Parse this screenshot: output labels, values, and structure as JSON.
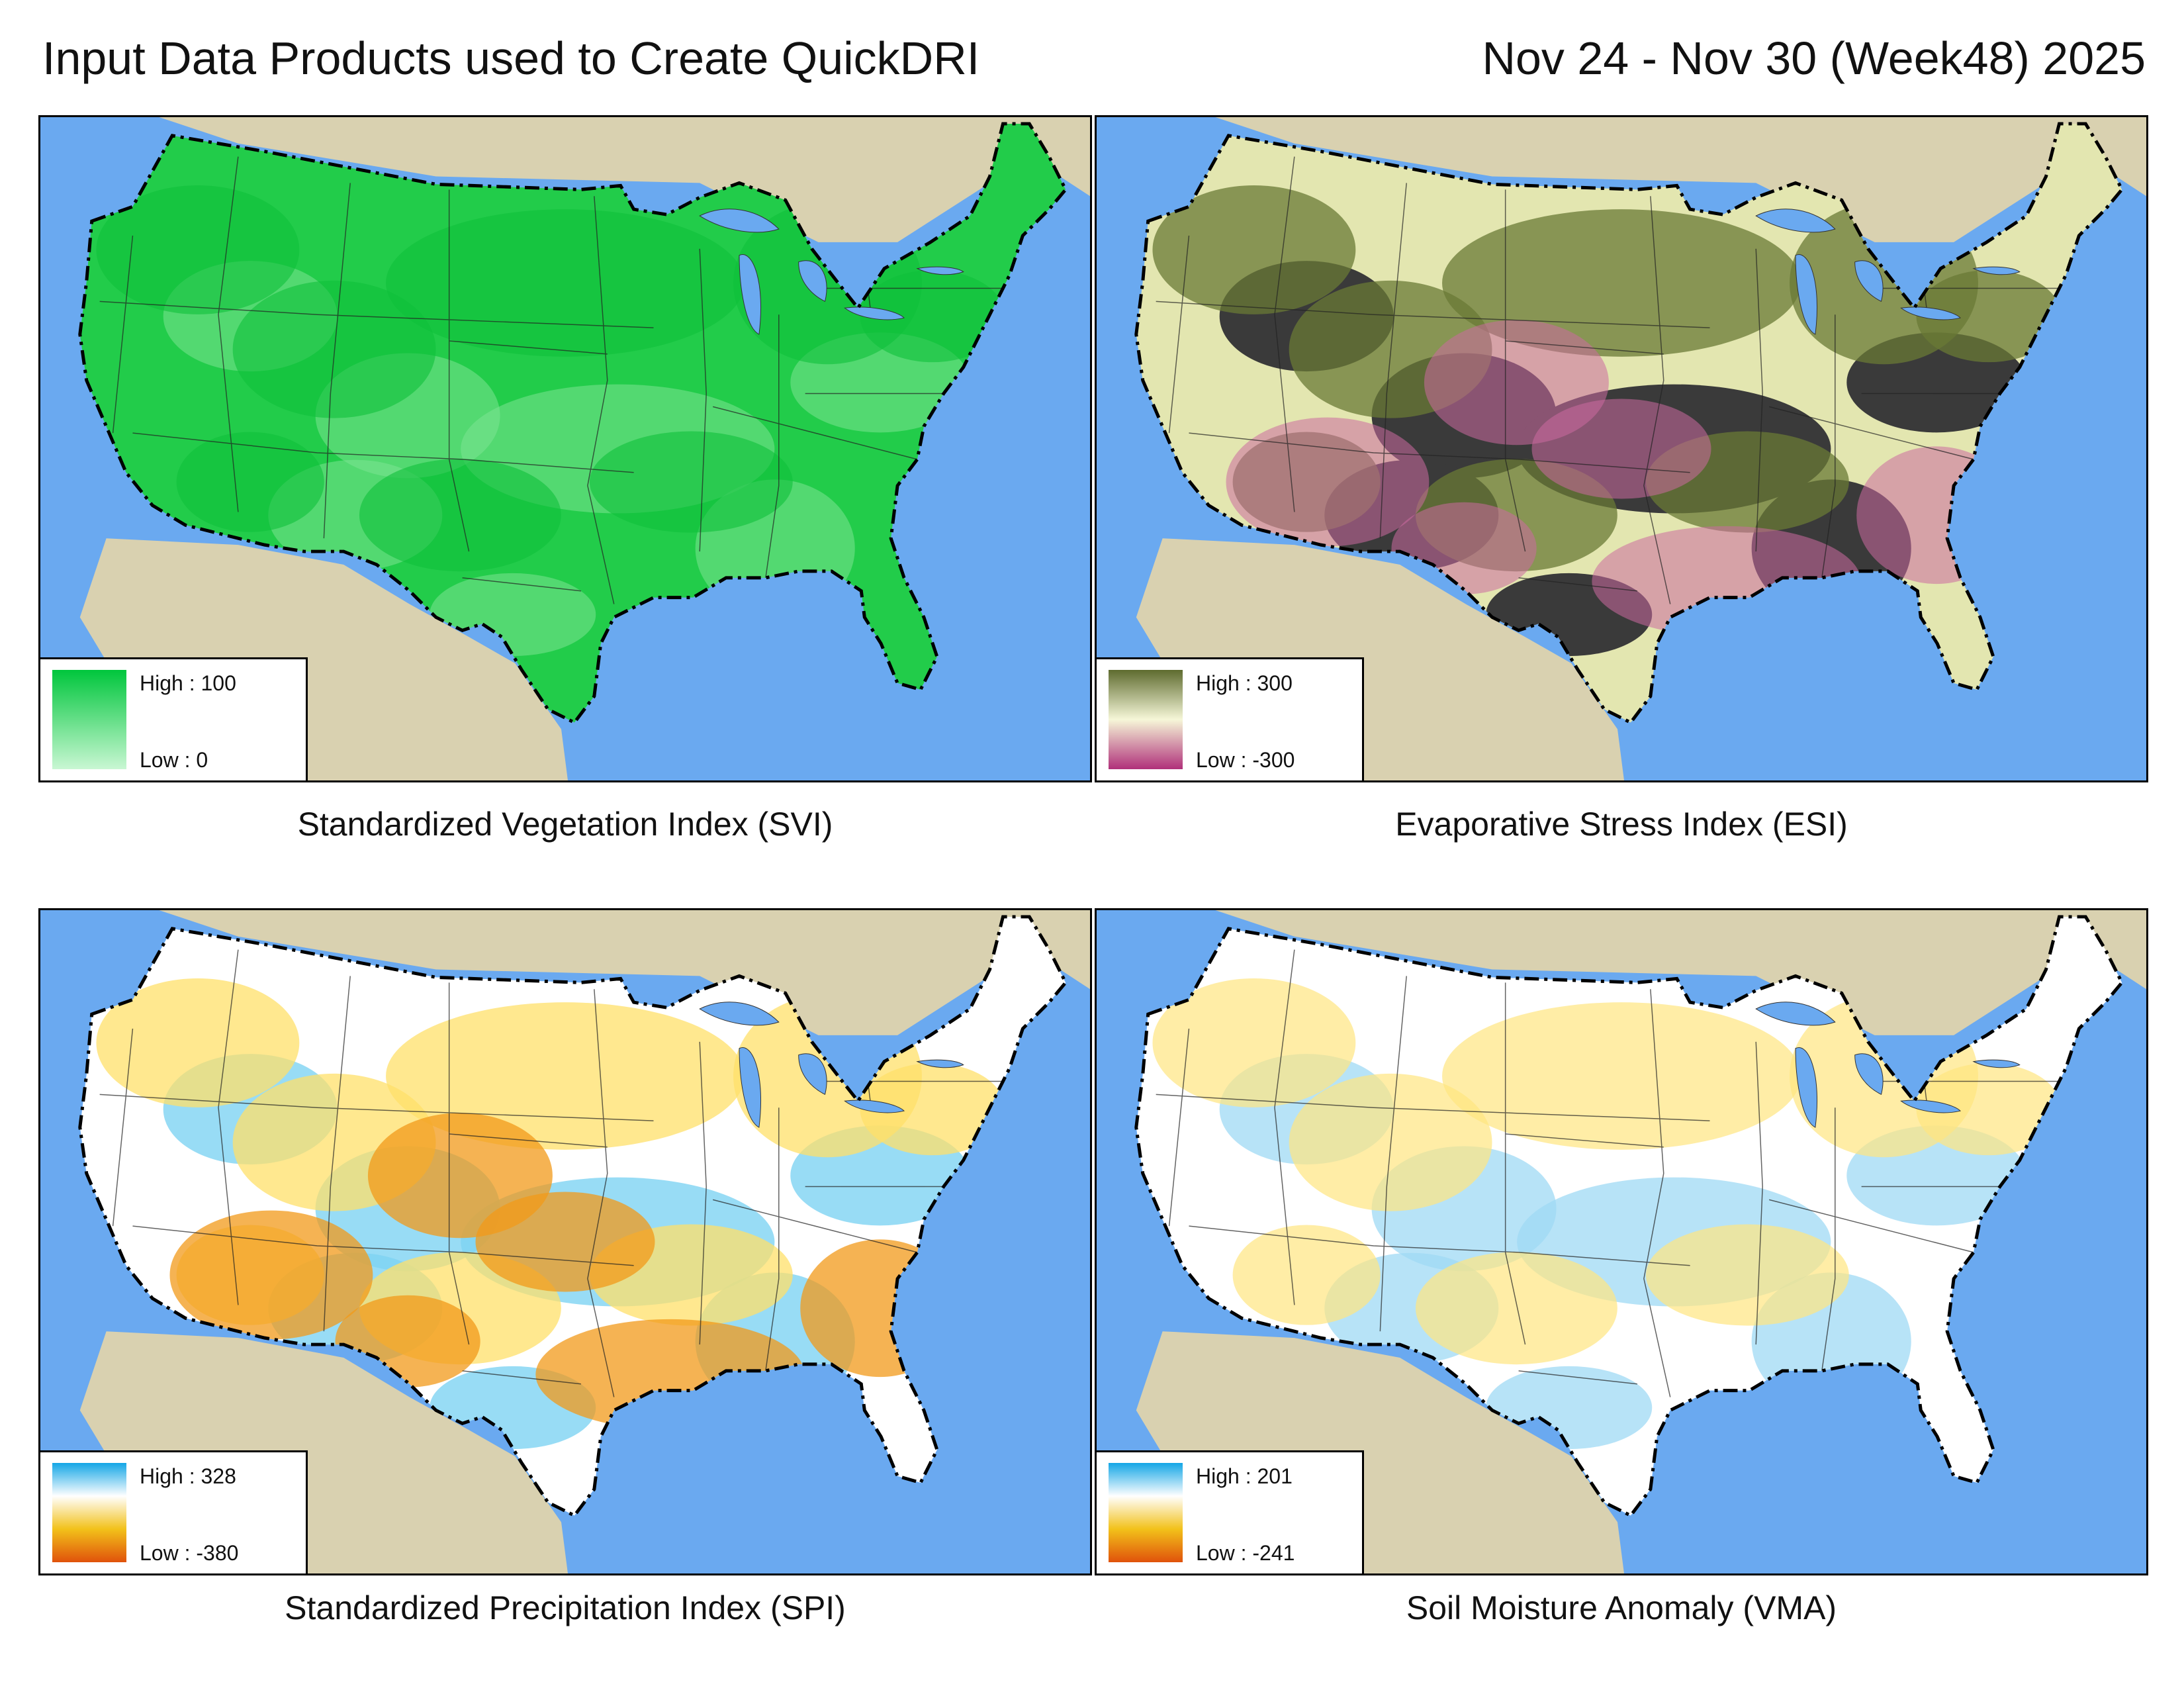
{
  "header": {
    "title": "Input Data Products used to Create QuickDRI",
    "date_range": "Nov 24 - Nov 30 (Week48) 2025"
  },
  "colors": {
    "ocean": "#6aa9f0",
    "land_outside": "#d9d1b0",
    "border_line": "#000000"
  },
  "panels": [
    {
      "id": "svi",
      "caption": "Standardized Vegetation Index (SVI)",
      "legend": {
        "high": "High : 100",
        "low": "Low : 0"
      },
      "ramp": [
        "#00c63c",
        "#c9f7d3"
      ],
      "fill": "#22cc4a",
      "blotches": [
        {
          "color": "#7be391",
          "opacity": 0.55
        },
        {
          "color": "#0fbf3a",
          "opacity": 0.6
        }
      ]
    },
    {
      "id": "esi",
      "caption": "Evaporative Stress Index (ESI)",
      "legend": {
        "high": "High : 300",
        "low": "Low : -300"
      },
      "ramp": [
        "#5e6b2f",
        "#f6f7d8",
        "#b0307a"
      ],
      "fill": "#e3e6b0",
      "blotches": [
        {
          "color": "#3a3a3a",
          "opacity": 1
        },
        {
          "color": "#6a7a35",
          "opacity": 0.75
        },
        {
          "color": "#cc6aa0",
          "opacity": 0.55
        }
      ]
    },
    {
      "id": "spi",
      "caption": "Standardized Precipitation Index (SPI)",
      "legend": {
        "high": "High : 328",
        "low": "Low : -380"
      },
      "ramp": [
        "#13a6e6",
        "#ffffff",
        "#f2c11a",
        "#e0520b"
      ],
      "fill": "#ffffff",
      "blotches": [
        {
          "color": "#7ed3f2",
          "opacity": 0.8
        },
        {
          "color": "#ffe06a",
          "opacity": 0.75
        },
        {
          "color": "#f29a1a",
          "opacity": 0.75
        }
      ]
    },
    {
      "id": "vma",
      "caption": "Soil Moisture Anomaly (VMA)",
      "legend": {
        "high": "High : 201",
        "low": "Low : -241"
      },
      "ramp": [
        "#13a6e6",
        "#ffffff",
        "#f2c11a",
        "#e0520b"
      ],
      "fill": "#ffffff",
      "blotches": [
        {
          "color": "#9fdaf4",
          "opacity": 0.75
        },
        {
          "color": "#ffe680",
          "opacity": 0.7
        }
      ]
    }
  ]
}
